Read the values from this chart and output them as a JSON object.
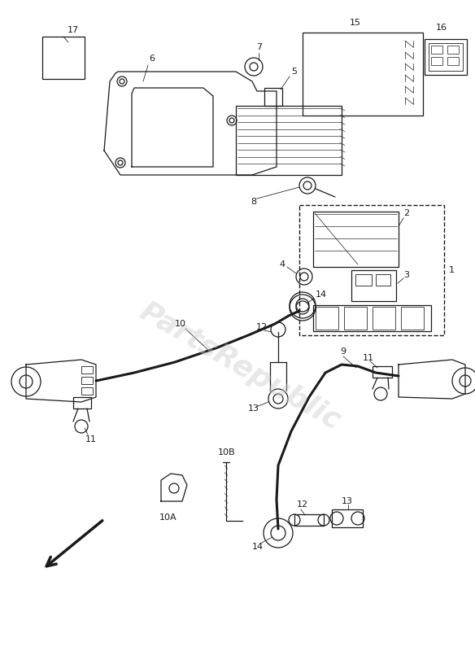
{
  "bg_color": "#ffffff",
  "line_color": "#1a1a1a",
  "watermark_text": "PartsRepublic",
  "watermark_color": "#cccccc",
  "watermark_alpha": 0.45
}
